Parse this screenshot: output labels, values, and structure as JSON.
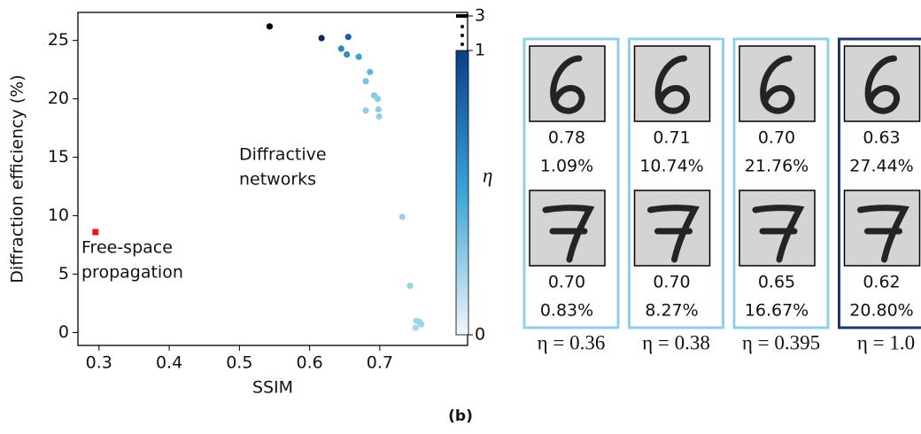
{
  "chart_data": {
    "type": "scatter",
    "xlabel": "SSIM",
    "ylabel": "Diffraction efficiency (%)",
    "xlim": [
      0.27,
      0.825
    ],
    "ylim": [
      -1.1,
      27.4
    ],
    "xticks": [
      0.3,
      0.4,
      0.5,
      0.6,
      0.7
    ],
    "yticks": [
      0,
      5,
      10,
      15,
      20,
      25
    ],
    "series": [
      {
        "x": [
          0.543,
          0.617,
          0.655,
          0.645,
          0.653,
          0.67,
          0.686,
          0.68,
          0.692,
          0.697,
          0.698,
          0.68,
          0.699,
          0.732,
          0.743,
          0.752,
          0.757,
          0.759,
          0.751
        ],
        "values": [
          26.2,
          25.2,
          25.3,
          24.3,
          23.8,
          23.6,
          22.3,
          21.5,
          20.3,
          20.0,
          19.1,
          19.0,
          18.5,
          9.9,
          4.0,
          1.0,
          0.9,
          0.7,
          0.4
        ],
        "colors": [
          "#000000",
          "#0b2a5e",
          "#1760a8",
          "#2e8cc4",
          "#2f8ec6",
          "#3aa0d0",
          "#62b7db",
          "#7cc3e1",
          "#86c8e3",
          "#8ecbe4",
          "#92cde5",
          "#92cde5",
          "#95cfe6",
          "#9ad1e7",
          "#9ad1e7",
          "#9ed3e8",
          "#9ed3e8",
          "#9ed3e8",
          "#a8d8eb"
        ],
        "marker": "circle"
      },
      {
        "x": [
          0.295
        ],
        "values": [
          8.6
        ],
        "color": "#e8141c",
        "marker": "square"
      }
    ],
    "annotations": [
      [
        "Diffractive",
        "networks"
      ],
      [
        "Free-space",
        "propagation"
      ]
    ],
    "colorbar": {
      "label": "η",
      "ticks": [
        0,
        1,
        3
      ],
      "colors": [
        "#f2f6fb",
        "#3aa5d6",
        "#0a3f86"
      ],
      "extend_color": "#000000"
    }
  },
  "panels": [
    {
      "eta": "η = 0.36",
      "border": "#8fd0e8",
      "digits": [
        {
          "ssim": "0.78",
          "eff": "1.09%"
        },
        {
          "ssim": "0.70",
          "eff": "0.83%"
        }
      ]
    },
    {
      "eta": "η = 0.38",
      "border": "#8fd0e8",
      "digits": [
        {
          "ssim": "0.71",
          "eff": "10.74%"
        },
        {
          "ssim": "0.70",
          "eff": "8.27%"
        }
      ]
    },
    {
      "eta": "η = 0.395",
      "border": "#8fd0e8",
      "digits": [
        {
          "ssim": "0.70",
          "eff": "21.76%"
        },
        {
          "ssim": "0.65",
          "eff": "16.67%"
        }
      ]
    },
    {
      "eta": "η = 1.0",
      "border": "#1b3a6b",
      "digits": [
        {
          "ssim": "0.63",
          "eff": "27.44%"
        },
        {
          "ssim": "0.62",
          "eff": "20.80%"
        }
      ]
    }
  ],
  "caption": "(b)"
}
